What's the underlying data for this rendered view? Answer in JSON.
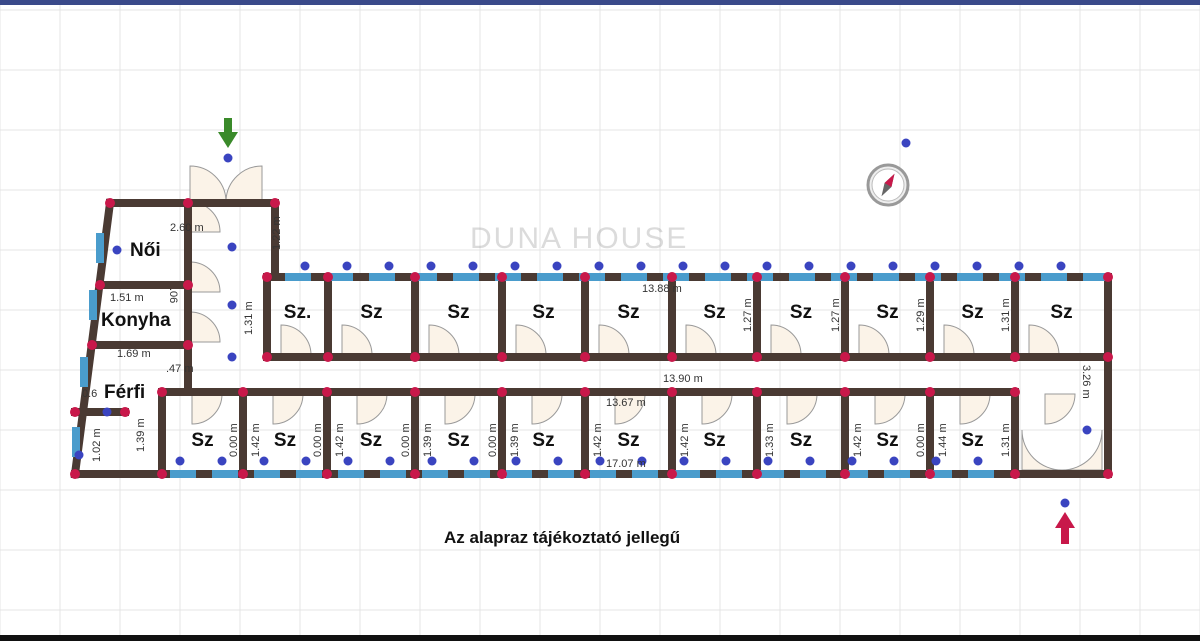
{
  "caption": "Az alapraz tájékoztató jellegű",
  "watermark": "DUNA HOUSE",
  "colors": {
    "wall": "#4a3a33",
    "window": "#4a9ccc",
    "node": "#c8184a",
    "point": "#3a44c0",
    "door": "#fbf3e8",
    "grid": "#e4e4e4",
    "entry_arrow": "#c8184a",
    "exit_arrow": "#3a8a2a"
  },
  "rooms": {
    "noi": "Női",
    "konyha": "Konyha",
    "ferfi": "Férfi",
    "top": [
      "Sz.",
      "Sz",
      "Sz",
      "Sz",
      "Sz",
      "Sz",
      "Sz",
      "Sz",
      "Sz",
      "Sz"
    ],
    "bottom": [
      "Sz",
      "Sz",
      "Sz",
      "Sz",
      "Sz",
      "Sz",
      "Sz",
      "Sz",
      "Sz",
      "Sz"
    ]
  },
  "dimensions": {
    "d260": "2.60 m",
    "d122": "1.22 m",
    "d131": "1.31 m",
    "d151": "1.51 m",
    "d06": ".06",
    "d169": "1.69 m",
    "d47": ".47 m",
    "d06b": "0.6",
    "d139l": "1.39 m",
    "d102": "1.02 m",
    "d1388": "13.88 m",
    "d1390": "13.90 m",
    "d1367": "13.67 m",
    "d1707": "17.07 m",
    "d326": "3.26 m",
    "top_v": [
      "1.27 m",
      "1.27 m",
      "1.29 m",
      "1.31 m"
    ],
    "bottom_v": [
      "0.00 m",
      "1.42 m",
      "0.00 m",
      "1.42 m",
      "0.00 m",
      "1.39 m",
      "0.00 m",
      "1.39 m",
      "1.42 m",
      "1.42 m",
      "1.33 m",
      "1.42 m",
      "0.00 m",
      "1.44 m",
      "1.31 m"
    ]
  }
}
